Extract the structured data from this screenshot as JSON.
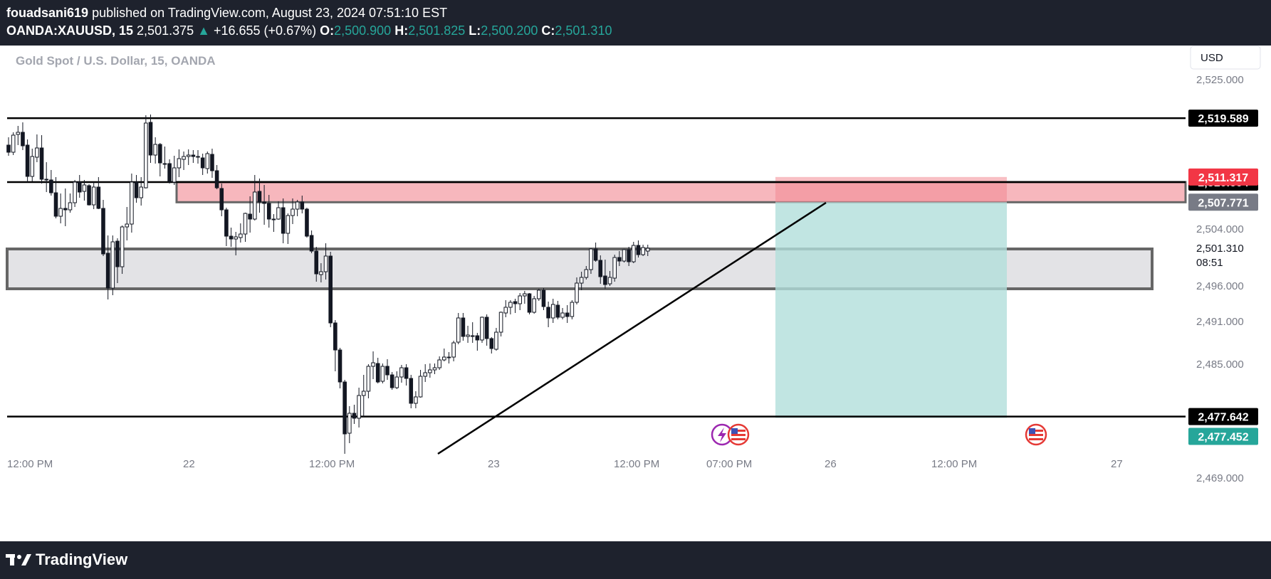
{
  "header": {
    "author": "fouadsani619",
    "published_text": "published on TradingView.com, August 23, 2024 07:51:10 EST",
    "symbol": "OANDA:XAUUSD, 15",
    "last_price": "2,501.375",
    "change_arrow": "▲",
    "change": "+16.655 (+0.67%)",
    "o_label": "O:",
    "o_value": "2,500.900",
    "h_label": "H:",
    "h_value": "2,501.825",
    "l_label": "L:",
    "l_value": "2,500.200",
    "c_label": "C:",
    "c_value": "2,501.310"
  },
  "colors": {
    "background": "#1e222d",
    "green": "#26a69a",
    "red": "#f23645",
    "stop_zone": "#f7b7bd",
    "target_zone": "#b2dfdb",
    "demand_zone": "#e3e3e6"
  },
  "footer": {
    "logo_text": "TradingView",
    "logo_icon": "tradingview-logo-icon"
  },
  "event_icons": [
    "lightning-event-icon",
    "us-flag-event-icon",
    "us-flag-event-icon"
  ],
  "chart_data": {
    "type": "candlestick",
    "title": "Gold Spot / U.S. Dollar, 15, OANDA",
    "currency_button": "USD",
    "x_ticks": [
      "12:00 PM",
      "22",
      "12:00 PM",
      "23",
      "12:00 PM",
      "07:00 PM",
      "26",
      "12:00 PM",
      "27"
    ],
    "y_ticks": [
      "2,525.000",
      "2,504.000",
      "2,496.000",
      "2,491.000",
      "2,485.000",
      "2,469.000"
    ],
    "ylim": [
      2466.5,
      2528.0
    ],
    "current_price_label": "2,501.310",
    "countdown": "08:51",
    "horizontal_lines": [
      {
        "price": 2519.589,
        "label": "2,519.589"
      },
      {
        "price": 2510.604,
        "label": "2,510.604"
      },
      {
        "price": 2477.642,
        "label": "2,477.642"
      }
    ],
    "position": {
      "type": "short",
      "entry": 2507.771,
      "entry_label": "2,507.771",
      "stop": 2511.317,
      "stop_label": "2,511.317",
      "target": 2477.452,
      "target_label": "2,477.452"
    },
    "zones": [
      {
        "name": "supply",
        "top": 2510.604,
        "bottom": 2507.771
      },
      {
        "name": "demand",
        "top": 2501.2,
        "bottom": 2495.6
      }
    ],
    "trendline": {
      "from": {
        "x": "Aug 22 18:45",
        "y": 2472.4
      },
      "to": {
        "x": "Aug 26 00:30",
        "y": 2507.7
      }
    },
    "ohlc": [
      [
        2515.8,
        2516.9,
        2514.3,
        2514.8
      ],
      [
        2514.8,
        2517.6,
        2514.4,
        2517.2
      ],
      [
        2517.3,
        2518.5,
        2515.8,
        2517.6
      ],
      [
        2517.6,
        2519.0,
        2515.1,
        2515.7
      ],
      [
        2515.8,
        2516.6,
        2510.6,
        2511.4
      ],
      [
        2511.4,
        2515.3,
        2510.7,
        2514.2
      ],
      [
        2514.1,
        2517.3,
        2513.4,
        2515.4
      ],
      [
        2515.4,
        2517.2,
        2510.4,
        2511.0
      ],
      [
        2511.0,
        2513.4,
        2509.2,
        2510.9
      ],
      [
        2510.9,
        2512.3,
        2508.7,
        2509.1
      ],
      [
        2509.1,
        2511.3,
        2505.5,
        2505.8
      ],
      [
        2505.8,
        2509.0,
        2504.8,
        2506.9
      ],
      [
        2506.9,
        2509.7,
        2504.4,
        2506.7
      ],
      [
        2506.7,
        2509.0,
        2506.3,
        2507.7
      ],
      [
        2507.7,
        2510.9,
        2507.1,
        2510.6
      ],
      [
        2510.6,
        2511.6,
        2508.4,
        2509.2
      ],
      [
        2509.3,
        2510.9,
        2508.0,
        2510.2
      ],
      [
        2510.1,
        2510.3,
        2507.3,
        2507.4
      ],
      [
        2507.4,
        2510.6,
        2506.8,
        2509.9
      ],
      [
        2509.9,
        2511.3,
        2506.8,
        2506.9
      ],
      [
        2506.9,
        2508.1,
        2500.2,
        2500.5
      ],
      [
        2500.6,
        2503.1,
        2494.1,
        2495.7
      ],
      [
        2495.7,
        2503.1,
        2494.7,
        2502.2
      ],
      [
        2502.3,
        2502.7,
        2496.4,
        2498.7
      ],
      [
        2498.7,
        2504.5,
        2497.7,
        2504.3
      ],
      [
        2504.3,
        2507.1,
        2502.4,
        2504.7
      ],
      [
        2504.7,
        2511.8,
        2503.5,
        2510.6
      ],
      [
        2510.6,
        2511.6,
        2507.7,
        2508.4
      ],
      [
        2508.4,
        2511.3,
        2507.3,
        2509.9
      ],
      [
        2509.8,
        2520.0,
        2509.7,
        2518.9
      ],
      [
        2519.0,
        2520.1,
        2513.3,
        2514.4
      ],
      [
        2514.4,
        2516.9,
        2513.2,
        2515.9
      ],
      [
        2515.9,
        2516.1,
        2511.4,
        2513.3
      ],
      [
        2513.2,
        2515.6,
        2512.5,
        2513.2
      ],
      [
        2513.2,
        2513.8,
        2510.4,
        2510.7
      ],
      [
        2510.6,
        2514.3,
        2510.2,
        2512.6
      ],
      [
        2512.6,
        2515.2,
        2511.3,
        2513.9
      ],
      [
        2513.8,
        2514.9,
        2512.3,
        2514.2
      ],
      [
        2514.2,
        2515.2,
        2513.0,
        2514.4
      ],
      [
        2514.4,
        2515.1,
        2513.3,
        2514.2
      ],
      [
        2514.2,
        2515.1,
        2513.2,
        2514.1
      ],
      [
        2514.0,
        2514.6,
        2511.6,
        2512.6
      ],
      [
        2512.5,
        2514.9,
        2511.8,
        2514.6
      ],
      [
        2514.5,
        2515.3,
        2511.2,
        2512.2
      ],
      [
        2512.2,
        2513.0,
        2509.6,
        2509.8
      ],
      [
        2509.7,
        2510.4,
        2505.8,
        2506.7
      ],
      [
        2506.7,
        2507.0,
        2501.6,
        2503.0
      ],
      [
        2503.0,
        2504.2,
        2501.5,
        2502.6
      ],
      [
        2502.6,
        2503.6,
        2500.3,
        2502.9
      ],
      [
        2502.8,
        2504.8,
        2502.1,
        2503.3
      ],
      [
        2503.3,
        2506.3,
        2502.2,
        2506.2
      ],
      [
        2506.1,
        2508.6,
        2503.5,
        2505.4
      ],
      [
        2505.4,
        2511.6,
        2505.2,
        2509.2
      ],
      [
        2509.3,
        2511.1,
        2506.3,
        2507.8
      ],
      [
        2507.8,
        2510.2,
        2504.6,
        2507.6
      ],
      [
        2507.6,
        2508.8,
        2504.2,
        2505.4
      ],
      [
        2505.4,
        2506.1,
        2503.6,
        2505.3
      ],
      [
        2505.4,
        2507.9,
        2505.3,
        2507.0
      ],
      [
        2507.0,
        2508.3,
        2502.0,
        2503.4
      ],
      [
        2503.4,
        2506.2,
        2501.9,
        2505.9
      ],
      [
        2505.9,
        2508.3,
        2504.7,
        2506.8
      ],
      [
        2506.8,
        2508.1,
        2505.8,
        2507.8
      ],
      [
        2507.8,
        2508.7,
        2506.2,
        2506.8
      ],
      [
        2506.8,
        2507.0,
        2502.8,
        2503.0
      ],
      [
        2503.1,
        2503.8,
        2500.6,
        2500.9
      ],
      [
        2500.9,
        2501.5,
        2496.6,
        2497.7
      ],
      [
        2497.6,
        2499.2,
        2496.5,
        2498.0
      ],
      [
        2498.0,
        2502.0,
        2496.9,
        2500.2
      ],
      [
        2500.2,
        2500.8,
        2490.2,
        2490.8
      ],
      [
        2490.8,
        2491.2,
        2484.0,
        2487.0
      ],
      [
        2487.0,
        2487.3,
        2481.6,
        2482.5
      ],
      [
        2482.5,
        2482.8,
        2472.4,
        2475.2
      ],
      [
        2475.3,
        2479.1,
        2473.9,
        2478.1
      ],
      [
        2478.1,
        2479.3,
        2476.6,
        2477.4
      ],
      [
        2477.4,
        2481.7,
        2476.1,
        2480.6
      ],
      [
        2480.6,
        2483.5,
        2477.6,
        2481.2
      ],
      [
        2481.2,
        2485.0,
        2480.2,
        2484.7
      ],
      [
        2484.7,
        2486.8,
        2482.9,
        2485.2
      ],
      [
        2485.1,
        2485.9,
        2482.3,
        2482.5
      ],
      [
        2482.6,
        2485.1,
        2482.3,
        2484.7
      ],
      [
        2484.7,
        2485.7,
        2482.8,
        2483.5
      ],
      [
        2483.5,
        2483.9,
        2481.4,
        2481.7
      ],
      [
        2481.7,
        2484.0,
        2481.5,
        2483.2
      ],
      [
        2483.2,
        2484.9,
        2482.4,
        2484.5
      ],
      [
        2484.5,
        2485.0,
        2482.0,
        2483.0
      ],
      [
        2483.0,
        2483.5,
        2478.8,
        2479.5
      ],
      [
        2479.5,
        2481.2,
        2478.8,
        2480.4
      ],
      [
        2480.4,
        2484.2,
        2480.3,
        2483.3
      ],
      [
        2483.3,
        2485.0,
        2482.5,
        2483.8
      ],
      [
        2483.8,
        2485.1,
        2483.1,
        2484.2
      ],
      [
        2484.2,
        2485.1,
        2483.6,
        2484.5
      ],
      [
        2484.5,
        2486.1,
        2484.2,
        2485.6
      ],
      [
        2485.6,
        2487.2,
        2485.4,
        2486.0
      ],
      [
        2486.0,
        2486.7,
        2485.1,
        2486.0
      ],
      [
        2486.0,
        2488.3,
        2485.4,
        2488.0
      ],
      [
        2488.1,
        2492.2,
        2487.8,
        2491.5
      ],
      [
        2491.5,
        2492.2,
        2488.3,
        2488.9
      ],
      [
        2488.9,
        2490.4,
        2488.0,
        2489.1
      ],
      [
        2488.9,
        2490.9,
        2488.0,
        2489.0
      ],
      [
        2489.0,
        2489.4,
        2486.9,
        2488.4
      ],
      [
        2488.4,
        2491.7,
        2488.0,
        2491.6
      ],
      [
        2491.6,
        2492.0,
        2487.6,
        2488.6
      ],
      [
        2488.6,
        2488.8,
        2486.5,
        2487.2
      ],
      [
        2487.1,
        2490.1,
        2486.9,
        2489.5
      ],
      [
        2489.5,
        2492.4,
        2488.9,
        2492.3
      ],
      [
        2492.2,
        2494.0,
        2491.6,
        2493.0
      ],
      [
        2493.0,
        2494.0,
        2492.0,
        2493.7
      ],
      [
        2493.8,
        2494.2,
        2492.2,
        2493.5
      ],
      [
        2493.5,
        2495.0,
        2492.6,
        2494.6
      ],
      [
        2494.6,
        2495.3,
        2493.5,
        2494.9
      ],
      [
        2494.9,
        2495.0,
        2492.0,
        2492.3
      ],
      [
        2492.3,
        2494.6,
        2492.1,
        2494.2
      ],
      [
        2494.2,
        2495.6,
        2493.9,
        2495.4
      ],
      [
        2495.4,
        2495.7,
        2492.6,
        2493.1
      ],
      [
        2493.0,
        2493.8,
        2490.2,
        2491.5
      ],
      [
        2491.5,
        2494.2,
        2490.8,
        2493.4
      ],
      [
        2493.3,
        2493.9,
        2491.3,
        2491.6
      ],
      [
        2491.6,
        2492.9,
        2491.3,
        2492.2
      ],
      [
        2492.2,
        2493.3,
        2490.8,
        2491.7
      ],
      [
        2491.7,
        2494.0,
        2491.3,
        2493.7
      ],
      [
        2493.7,
        2497.2,
        2493.4,
        2496.4
      ],
      [
        2496.4,
        2498.0,
        2495.4,
        2497.2
      ],
      [
        2497.2,
        2498.8,
        2496.9,
        2498.3
      ],
      [
        2498.3,
        2501.3,
        2497.7,
        2501.2
      ],
      [
        2501.2,
        2502.1,
        2499.4,
        2499.6
      ],
      [
        2499.6,
        2500.3,
        2496.3,
        2497.3
      ],
      [
        2497.4,
        2499.7,
        2495.6,
        2496.2
      ],
      [
        2496.3,
        2498.1,
        2496.0,
        2497.2
      ],
      [
        2497.1,
        2500.4,
        2496.6,
        2500.0
      ],
      [
        2500.0,
        2500.9,
        2498.8,
        2499.5
      ],
      [
        2499.5,
        2501.2,
        2499.3,
        2501.1
      ],
      [
        2501.1,
        2501.5,
        2498.8,
        2499.4
      ],
      [
        2499.4,
        2502.2,
        2499.2,
        2501.7
      ],
      [
        2501.7,
        2502.4,
        2500.0,
        2500.4
      ],
      [
        2500.4,
        2501.8,
        2500.2,
        2501.4
      ],
      [
        2500.9,
        2501.8,
        2500.2,
        2501.3
      ]
    ]
  }
}
